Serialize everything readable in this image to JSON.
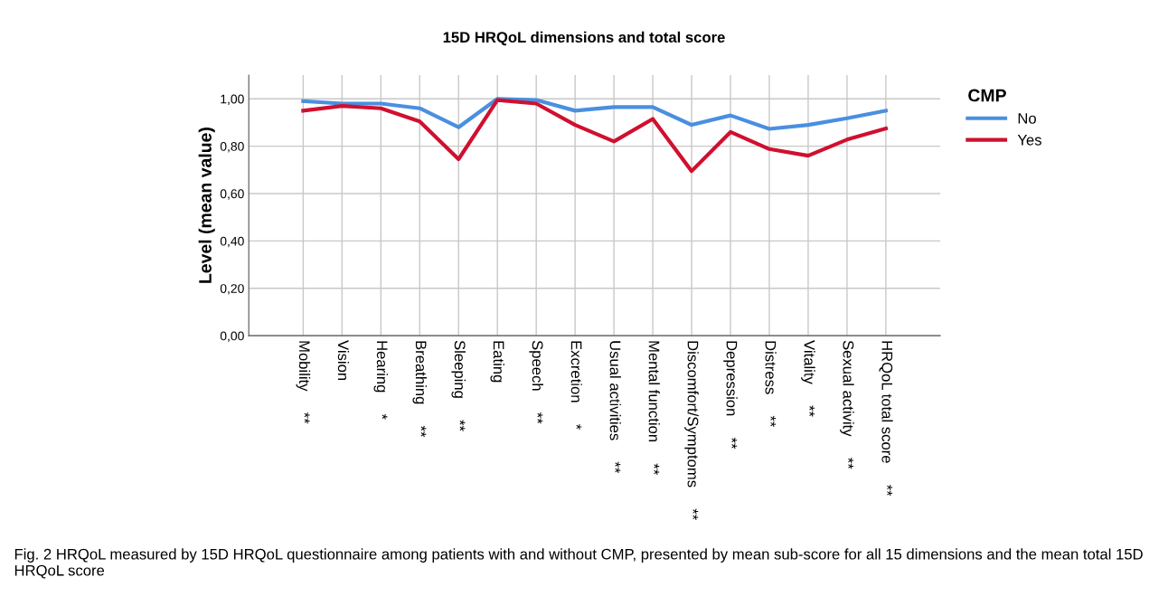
{
  "chart_data": {
    "type": "line",
    "title": "15D HRQoL dimensions and total score",
    "ylabel": "Level (mean value)",
    "legend_title": "CMP",
    "categories": [
      "Mobility     **",
      "Vision",
      "Hearing     *",
      "Breathing     **",
      "Sleeping     **",
      "Eating",
      "Speech     **",
      "Excretion     *",
      "Usual activities     **",
      "Mental function     **",
      "Discomfort/Symptoms     **",
      "Depression     **",
      "Distress     **",
      "Vitality     **",
      "Sexual activity     **",
      "HRQoL total score     **"
    ],
    "series": [
      {
        "name": "No",
        "color": "#4a8fe0",
        "values": [
          0.99,
          0.98,
          0.98,
          0.96,
          0.88,
          1.0,
          0.995,
          0.95,
          0.965,
          0.965,
          0.89,
          0.93,
          0.873,
          0.89,
          0.918,
          0.95
        ]
      },
      {
        "name": "Yes",
        "color": "#d0102e",
        "values": [
          0.95,
          0.97,
          0.96,
          0.905,
          0.745,
          0.995,
          0.98,
          0.89,
          0.82,
          0.915,
          0.695,
          0.86,
          0.788,
          0.76,
          0.828,
          0.875
        ]
      }
    ],
    "ylim": [
      0,
      1.1
    ],
    "yticks": [
      {
        "value": 0,
        "label": "0,00"
      },
      {
        "value": 0.2,
        "label": "0,20"
      },
      {
        "value": 0.4,
        "label": "0,40"
      },
      {
        "value": 0.6,
        "label": "0,60"
      },
      {
        "value": 0.8,
        "label": "0,80"
      },
      {
        "value": 1.0,
        "label": "1,00"
      }
    ],
    "grid": true,
    "legend": "right",
    "marker": "none",
    "line_style": "solid",
    "annotations": [
      "Fig. 2 HRQoL measured by 15D HRQoL questionnaire among patients with and without CMP, presented by mean sub-score for all 15 dimensions and the mean total 15D HRQoL score"
    ]
  }
}
